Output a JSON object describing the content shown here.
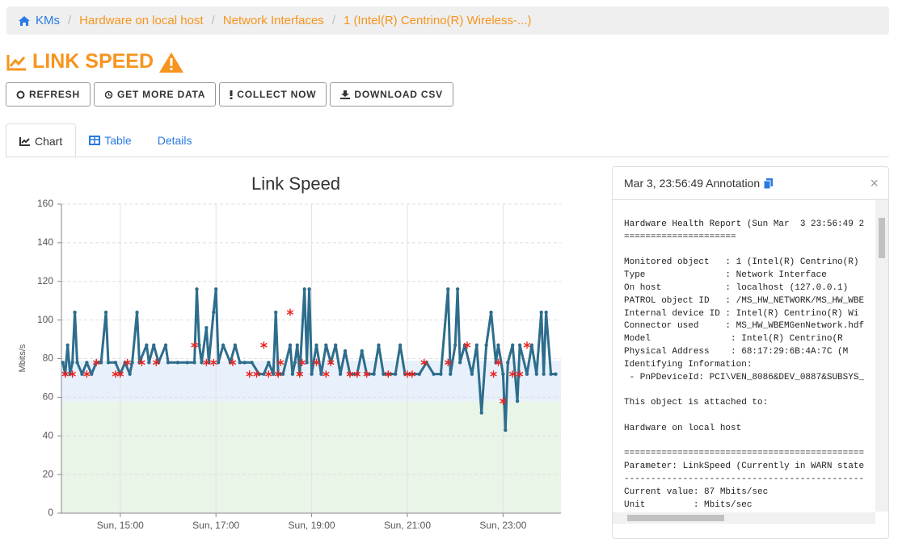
{
  "breadcrumb": [
    "KMs",
    "Hardware on local host",
    "Network Interfaces",
    "1 (Intel(R) Centrino(R) Wireless-...)"
  ],
  "page_title": "LINK SPEED",
  "buttons": [
    "REFRESH",
    "GET MORE DATA",
    "COLLECT NOW",
    "DOWNLOAD CSV"
  ],
  "tabs": [
    "Chart",
    "Table",
    "Details"
  ],
  "chart_data": {
    "type": "line",
    "title": "Link Speed",
    "y_label": "Mbits/s",
    "color": "#2e6d8c",
    "xlim": [
      13.77,
      24.21
    ],
    "ylim": [
      0,
      160
    ],
    "xticks": [
      {
        "value": 15,
        "label": "Sun, 15:00"
      },
      {
        "value": 17,
        "label": "Sun, 17:00"
      },
      {
        "value": 19,
        "label": "Sun, 19:00"
      },
      {
        "value": 21,
        "label": "Sun, 21:00"
      },
      {
        "value": 23,
        "label": "Sun, 23:00"
      }
    ],
    "yticks": [
      0,
      20,
      40,
      60,
      80,
      100,
      120,
      140,
      160
    ],
    "grid": true,
    "bands": [
      {
        "from": 0,
        "to": 58,
        "color": "#e9f5e7"
      },
      {
        "from": 58,
        "to": 79,
        "color": "#e8f1fb"
      }
    ],
    "x": [
      13.8,
      13.85,
      13.9,
      13.95,
      14.0,
      14.05,
      14.1,
      14.2,
      14.3,
      14.4,
      14.5,
      14.6,
      14.7,
      14.75,
      14.9,
      15.0,
      15.1,
      15.2,
      15.25,
      15.35,
      15.4,
      15.55,
      15.6,
      15.7,
      15.8,
      15.95,
      16.0,
      16.2,
      16.4,
      16.55,
      16.6,
      16.65,
      16.7,
      16.8,
      16.85,
      16.95,
      17.0,
      17.05,
      17.15,
      17.3,
      17.4,
      17.5,
      17.6,
      17.75,
      17.9,
      18.0,
      18.1,
      18.2,
      18.25,
      18.3,
      18.4,
      18.55,
      18.6,
      18.65,
      18.7,
      18.75,
      18.85,
      18.9,
      18.95,
      19.0,
      19.1,
      19.2,
      19.3,
      19.4,
      19.5,
      19.6,
      19.7,
      19.8,
      19.95,
      20.05,
      20.15,
      20.3,
      20.4,
      20.5,
      20.6,
      20.75,
      20.85,
      20.95,
      21.1,
      21.25,
      21.4,
      21.55,
      21.7,
      21.85,
      21.9,
      22.0,
      22.05,
      22.1,
      22.2,
      22.35,
      22.45,
      22.55,
      22.65,
      22.75,
      22.85,
      22.9,
      23.0,
      23.05,
      23.1,
      23.2,
      23.3,
      23.35,
      23.5,
      23.6,
      23.7,
      23.8,
      23.85,
      23.9,
      24.0,
      24.1
    ],
    "values": [
      78,
      72,
      87,
      72,
      78,
      104,
      78,
      72,
      78,
      72,
      78,
      78,
      104,
      78,
      78,
      72,
      78,
      72,
      78,
      104,
      78,
      87,
      78,
      87,
      78,
      87,
      78,
      78,
      78,
      78,
      116,
      87,
      78,
      96,
      78,
      104,
      116,
      78,
      87,
      78,
      87,
      78,
      78,
      78,
      72,
      72,
      78,
      72,
      104,
      72,
      72,
      87,
      72,
      78,
      87,
      72,
      116,
      78,
      116,
      72,
      87,
      72,
      87,
      78,
      87,
      72,
      84,
      72,
      72,
      84,
      72,
      72,
      87,
      72,
      72,
      72,
      87,
      72,
      72,
      72,
      78,
      72,
      72,
      116,
      72,
      87,
      116,
      78,
      87,
      72,
      87,
      52,
      87,
      104,
      78,
      87,
      72,
      43,
      78,
      87,
      58,
      87,
      72,
      87,
      72,
      104,
      72,
      104,
      72,
      72
    ],
    "markers": {
      "color": "#e8231f",
      "x": [
        13.85,
        14.0,
        14.3,
        14.5,
        14.9,
        15.0,
        15.15,
        15.45,
        15.75,
        16.55,
        16.8,
        16.95,
        17.35,
        17.7,
        17.85,
        18.0,
        18.1,
        18.3,
        18.35,
        18.55,
        18.75,
        18.8,
        19.1,
        19.3,
        19.4,
        19.8,
        19.95,
        20.15,
        20.6,
        21.0,
        21.1,
        21.35,
        21.85,
        22.25,
        22.8,
        22.9,
        23.0,
        23.2,
        23.35,
        23.5
      ],
      "values": [
        72,
        72,
        72,
        78,
        72,
        72,
        78,
        78,
        78,
        87,
        78,
        78,
        78,
        72,
        72,
        87,
        72,
        72,
        78,
        104,
        72,
        78,
        78,
        72,
        78,
        72,
        72,
        72,
        72,
        72,
        72,
        78,
        78,
        87,
        72,
        78,
        58,
        72,
        72,
        87
      ]
    }
  },
  "annotation": {
    "title": "Mar 3, 23:56:49 Annotation",
    "groups": [
      [
        "Hardware Health Report (Sun Mar  3 23:56:49 2",
        "====================="
      ],
      [
        "Monitored object   : 1 (Intel(R) Centrino(R)",
        "Type               : Network Interface",
        "On host            : localhost (127.0.0.1)",
        "PATROL object ID   : /MS_HW_NETWORK/MS_HW_WBE",
        "Internal device ID : Intel(R) Centrino(R) Wi",
        "Connector used     : MS_HW_WBEMGenNetwork.hdf",
        "Model               : Intel(R) Centrino(R",
        "Physical Address    : 68:17:29:6B:4A:7C (M",
        "Identifying Information:",
        " - PnPDeviceId: PCI\\VEN_8086&DEV_0887&SUBSYS_"
      ],
      [
        "This object is attached to:"
      ],
      [
        "Hardware on local host"
      ],
      [
        "=============================================",
        "Parameter: LinkSpeed (Currently in WARN state",
        "---------------------------------------------",
        "Current value: 87 Mbits/sec",
        "Unit         : Mbits/sec"
      ]
    ]
  }
}
